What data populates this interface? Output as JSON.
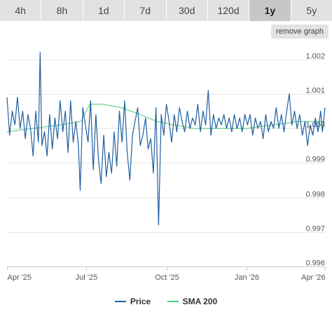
{
  "toolbar": {
    "tabs": [
      {
        "label": "4h"
      },
      {
        "label": "8h"
      },
      {
        "label": "1d"
      },
      {
        "label": "7d"
      },
      {
        "label": "30d"
      },
      {
        "label": "120d"
      },
      {
        "label": "1y",
        "active": true
      },
      {
        "label": "5y"
      }
    ],
    "remove_label": "remove graph"
  },
  "colors": {
    "price": "#1f5fa0",
    "sma": "#4cc97a",
    "grid": "#e6e6e6",
    "axis": "#cccccc"
  },
  "chart_data": {
    "type": "line",
    "title": "",
    "xlabel": "",
    "ylabel": "",
    "ylim": [
      0.996,
      1.0025
    ],
    "y_ticks": [
      "0.996",
      "0.997",
      "0.998",
      "0.999",
      "1.000",
      "1.001",
      "1.002"
    ],
    "x_ticks": [
      {
        "label": "Apr '25",
        "date": "2025-04-01"
      },
      {
        "label": "Jul '25",
        "date": "2025-07-01"
      },
      {
        "label": "Oct '25",
        "date": "2025-10-01"
      },
      {
        "label": "Jan '26",
        "date": "2026-01-01"
      },
      {
        "label": "Apr '26",
        "date": "2026-04-01"
      }
    ],
    "x_range": [
      "2025-04-01",
      "2026-04-01"
    ],
    "grid": true,
    "legend_position": "bottom",
    "series": [
      {
        "name": "Price",
        "points": [
          [
            "2025-04-01",
            1.0009
          ],
          [
            "2025-04-04",
            0.9998
          ],
          [
            "2025-04-07",
            1.0005
          ],
          [
            "2025-04-10",
            1.0001
          ],
          [
            "2025-04-13",
            1.0009
          ],
          [
            "2025-04-16",
            1.0
          ],
          [
            "2025-04-19",
            1.0005
          ],
          [
            "2025-04-22",
            0.9997
          ],
          [
            "2025-04-25",
            1.0004
          ],
          [
            "2025-04-28",
            1.0
          ],
          [
            "2025-05-01",
            0.9992
          ],
          [
            "2025-05-04",
            1.0005
          ],
          [
            "2025-05-07",
            0.9996
          ],
          [
            "2025-05-09",
            1.0022
          ],
          [
            "2025-05-11",
            0.9995
          ],
          [
            "2025-05-14",
            0.9999
          ],
          [
            "2025-05-17",
            0.9992
          ],
          [
            "2025-05-20",
            1.0004
          ],
          [
            "2025-05-23",
            0.9994
          ],
          [
            "2025-05-26",
            1.0003
          ],
          [
            "2025-05-29",
            0.9997
          ],
          [
            "2025-06-01",
            1.0008
          ],
          [
            "2025-06-04",
            0.9999
          ],
          [
            "2025-06-07",
            1.0005
          ],
          [
            "2025-06-10",
            0.9993
          ],
          [
            "2025-06-13",
            1.0008
          ],
          [
            "2025-06-16",
            0.9996
          ],
          [
            "2025-06-19",
            1.0002
          ],
          [
            "2025-06-22",
            0.9995
          ],
          [
            "2025-06-24",
            0.9982
          ],
          [
            "2025-06-27",
            1.0006
          ],
          [
            "2025-06-30",
            1.0001
          ],
          [
            "2025-07-03",
            0.9996
          ],
          [
            "2025-07-06",
            1.0008
          ],
          [
            "2025-07-09",
            0.9988
          ],
          [
            "2025-07-12",
            1.0004
          ],
          [
            "2025-07-15",
            0.9991
          ],
          [
            "2025-07-18",
            0.9984
          ],
          [
            "2025-07-21",
            0.9998
          ],
          [
            "2025-07-24",
            0.9986
          ],
          [
            "2025-07-27",
            0.9993
          ],
          [
            "2025-07-30",
            0.9987
          ],
          [
            "2025-08-02",
            0.9999
          ],
          [
            "2025-08-05",
            0.9989
          ],
          [
            "2025-08-08",
            1.0005
          ],
          [
            "2025-08-11",
            0.9996
          ],
          [
            "2025-08-14",
            1.0008
          ],
          [
            "2025-08-17",
            0.9993
          ],
          [
            "2025-08-20",
            0.9985
          ],
          [
            "2025-08-23",
            0.9998
          ],
          [
            "2025-08-26",
            1.0002
          ],
          [
            "2025-08-29",
            1.0006
          ],
          [
            "2025-09-01",
            0.9995
          ],
          [
            "2025-09-04",
            0.9998
          ],
          [
            "2025-09-07",
            1.0003
          ],
          [
            "2025-09-10",
            0.9994
          ],
          [
            "2025-09-13",
            0.9997
          ],
          [
            "2025-09-16",
            0.9987
          ],
          [
            "2025-09-19",
            1.0006
          ],
          [
            "2025-09-22",
            0.9972
          ],
          [
            "2025-09-25",
            1.0004
          ],
          [
            "2025-09-28",
            0.9998
          ],
          [
            "2025-10-01",
            1.0007
          ],
          [
            "2025-10-04",
            1.0002
          ],
          [
            "2025-10-07",
            0.9996
          ],
          [
            "2025-10-10",
            1.0004
          ],
          [
            "2025-10-13",
            0.9999
          ],
          [
            "2025-10-16",
            1.0006
          ],
          [
            "2025-10-19",
            1.0002
          ],
          [
            "2025-10-22",
            0.9999
          ],
          [
            "2025-10-25",
            1.0005
          ],
          [
            "2025-10-28",
            1.0
          ],
          [
            "2025-10-31",
            1.0003
          ],
          [
            "2025-11-03",
            1.0001
          ],
          [
            "2025-11-06",
            1.0007
          ],
          [
            "2025-11-09",
            0.9999
          ],
          [
            "2025-11-12",
            1.0005
          ],
          [
            "2025-11-15",
            1.0001
          ],
          [
            "2025-11-18",
            1.0011
          ],
          [
            "2025-11-21",
            0.9998
          ],
          [
            "2025-11-24",
            1.0004
          ],
          [
            "2025-11-27",
            1.0
          ],
          [
            "2025-11-30",
            1.0003
          ],
          [
            "2025-12-03",
            1.0001
          ],
          [
            "2025-12-06",
            1.0004
          ],
          [
            "2025-12-09",
            1.0
          ],
          [
            "2025-12-12",
            1.0003
          ],
          [
            "2025-12-15",
            0.9999
          ],
          [
            "2025-12-18",
            1.0004
          ],
          [
            "2025-12-21",
            1.0
          ],
          [
            "2025-12-24",
            1.0003
          ],
          [
            "2025-12-27",
            0.9999
          ],
          [
            "2025-12-30",
            1.0004
          ],
          [
            "2026-01-02",
            1.0001
          ],
          [
            "2026-01-05",
            1.0004
          ],
          [
            "2026-01-08",
            0.9998
          ],
          [
            "2026-01-11",
            1.0003
          ],
          [
            "2026-01-14",
            1.0
          ],
          [
            "2026-01-17",
            1.0002
          ],
          [
            "2026-01-20",
            0.9997
          ],
          [
            "2026-01-23",
            1.0004
          ],
          [
            "2026-01-26",
            0.9999
          ],
          [
            "2026-01-29",
            1.0002
          ],
          [
            "2026-02-01",
            1.0
          ],
          [
            "2026-02-04",
            1.0006
          ],
          [
            "2026-02-07",
            1.0
          ],
          [
            "2026-02-10",
            1.0004
          ],
          [
            "2026-02-13",
            0.9999
          ],
          [
            "2026-02-16",
            1.0005
          ],
          [
            "2026-02-19",
            1.001
          ],
          [
            "2026-02-22",
            1.0001
          ],
          [
            "2026-02-25",
            1.0005
          ],
          [
            "2026-02-28",
            1.0
          ],
          [
            "2026-03-03",
            1.0004
          ],
          [
            "2026-03-06",
            0.9998
          ],
          [
            "2026-03-09",
            1.0002
          ],
          [
            "2026-03-12",
            0.9995
          ],
          [
            "2026-03-15",
            1.0001
          ],
          [
            "2026-03-18",
            0.9998
          ],
          [
            "2026-03-21",
            1.0003
          ],
          [
            "2026-03-24",
            0.9999
          ],
          [
            "2026-03-27",
            1.0005
          ],
          [
            "2026-03-29",
            0.9999
          ],
          [
            "2026-04-01",
            1.0006
          ]
        ]
      },
      {
        "name": "SMA 200",
        "points": [
          [
            "2025-04-01",
            0.9999
          ],
          [
            "2025-05-01",
            1.0
          ],
          [
            "2025-06-01",
            1.0001
          ],
          [
            "2025-06-25",
            1.0002
          ],
          [
            "2025-07-05",
            1.0007
          ],
          [
            "2025-07-20",
            1.0007
          ],
          [
            "2025-08-10",
            1.0006
          ],
          [
            "2025-09-01",
            1.0004
          ],
          [
            "2025-09-20",
            1.0002
          ],
          [
            "2025-10-10",
            1.0001
          ],
          [
            "2025-11-01",
            1.0
          ],
          [
            "2025-12-01",
            1.0
          ],
          [
            "2026-01-01",
            1.0
          ],
          [
            "2026-02-01",
            1.0001
          ],
          [
            "2026-03-01",
            1.0002
          ],
          [
            "2026-04-01",
            1.0002
          ]
        ]
      }
    ]
  }
}
